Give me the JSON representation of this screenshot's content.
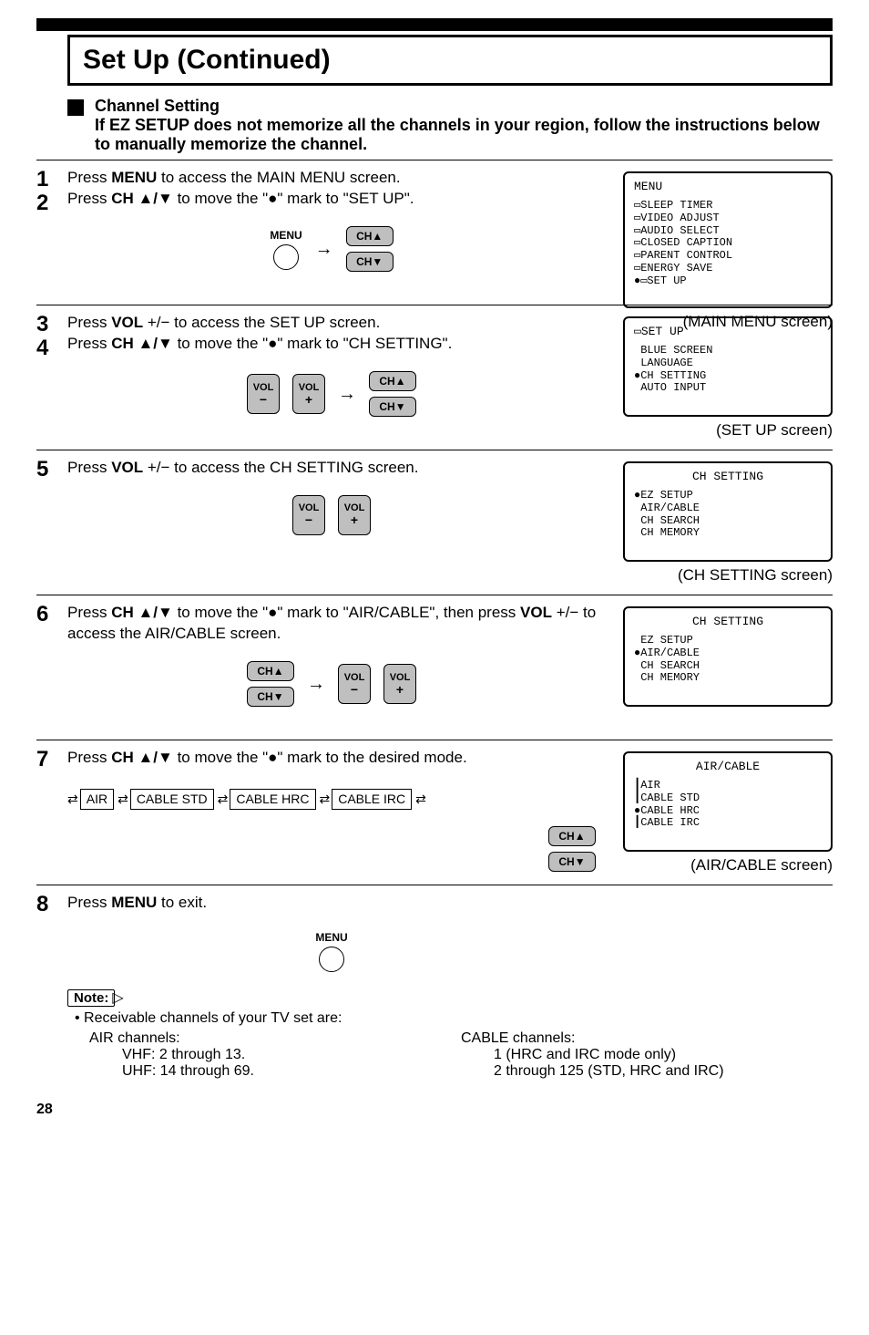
{
  "page_number": "28",
  "title": "Set Up (Continued)",
  "section": {
    "heading": "Channel Setting",
    "sub": "If EZ SETUP does not memorize all the channels in your region, follow the instructions below to manually memorize the channel."
  },
  "steps": [
    {
      "nums": [
        "1",
        "2"
      ],
      "lines": [
        "Press <b>MENU</b> to access the MAIN MENU screen.",
        "Press <b>CH ▲/▼</b> to move the \"●\" mark to \"SET UP\"."
      ],
      "remote": {
        "type": "menu_ch"
      },
      "osd": {
        "title": "MENU",
        "title_align": "left",
        "lines": [
          "▭SLEEP TIMER",
          "▭VIDEO ADJUST",
          "▭AUDIO SELECT",
          "▭CLOSED CAPTION",
          "▭PARENT CONTROL",
          "▭ENERGY SAVE",
          "●▭SET UP"
        ]
      },
      "caption": "(MAIN MENU screen)"
    },
    {
      "nums": [
        "3",
        "4"
      ],
      "lines": [
        "Press <b>VOL</b> +/− to access the SET UP screen.",
        "Press <b>CH ▲/▼</b> to move the \"●\" mark to \"CH SETTING\"."
      ],
      "remote": {
        "type": "vol_ch"
      },
      "osd": {
        "title": "▭SET UP",
        "title_align": "left",
        "lines": [
          " BLUE SCREEN",
          " LANGUAGE",
          "●CH SETTING",
          " AUTO INPUT"
        ]
      },
      "caption": "(SET UP screen)"
    },
    {
      "nums": [
        "5"
      ],
      "lines": [
        "Press <b>VOL</b> +/− to access the CH SETTING screen."
      ],
      "remote": {
        "type": "vol"
      },
      "osd": {
        "title": "CH SETTING",
        "title_align": "center",
        "lines": [
          "●EZ SETUP",
          " AIR/CABLE",
          " CH SEARCH",
          " CH MEMORY"
        ]
      },
      "caption": "(CH SETTING screen)"
    },
    {
      "nums": [
        "6"
      ],
      "lines": [
        "Press <b>CH ▲/▼</b> to move the \"●\" mark to \"AIR/CABLE\", then press <b>VOL</b> +/− to access the AIR/CABLE screen."
      ],
      "remote": {
        "type": "ch_vol"
      },
      "osd": {
        "title": "CH SETTING",
        "title_align": "center",
        "lines": [
          " EZ SETUP",
          "●AIR/CABLE",
          " CH SEARCH",
          " CH MEMORY"
        ]
      },
      "caption": ""
    },
    {
      "nums": [
        "7"
      ],
      "lines": [
        "Press <b>CH ▲/▼</b> to move the \"●\" mark to the desired mode."
      ],
      "remote": {
        "type": "loop_ch",
        "loop": [
          "AIR",
          "CABLE STD",
          "CABLE HRC",
          "CABLE IRC"
        ]
      },
      "osd": {
        "title": "AIR/CABLE",
        "title_align": "center",
        "lines": [
          "┃AIR",
          "┃CABLE STD",
          "●CABLE HRC",
          "┃CABLE IRC"
        ]
      },
      "caption": "(AIR/CABLE screen)"
    },
    {
      "nums": [
        "8"
      ],
      "lines": [
        "Press <b>MENU</b> to exit."
      ],
      "remote": {
        "type": "menu"
      },
      "osd": null,
      "caption": ""
    }
  ],
  "note": {
    "label": "Note:",
    "bullet": "• Receivable channels of your TV set are:",
    "cols": [
      {
        "hdr": "AIR channels:",
        "lines": [
          "VHF: 2 through 13.",
          "UHF: 14 through 69."
        ]
      },
      {
        "hdr": "CABLE channels:",
        "lines": [
          "1 (HRC and IRC mode only)",
          "2 through 125 (STD, HRC and IRC)"
        ]
      }
    ]
  },
  "btn_labels": {
    "ch_up": "CH▲",
    "ch_down": "CH▼",
    "vol_minus": "VOL",
    "vol_plus": "VOL",
    "menu": "MENU"
  }
}
